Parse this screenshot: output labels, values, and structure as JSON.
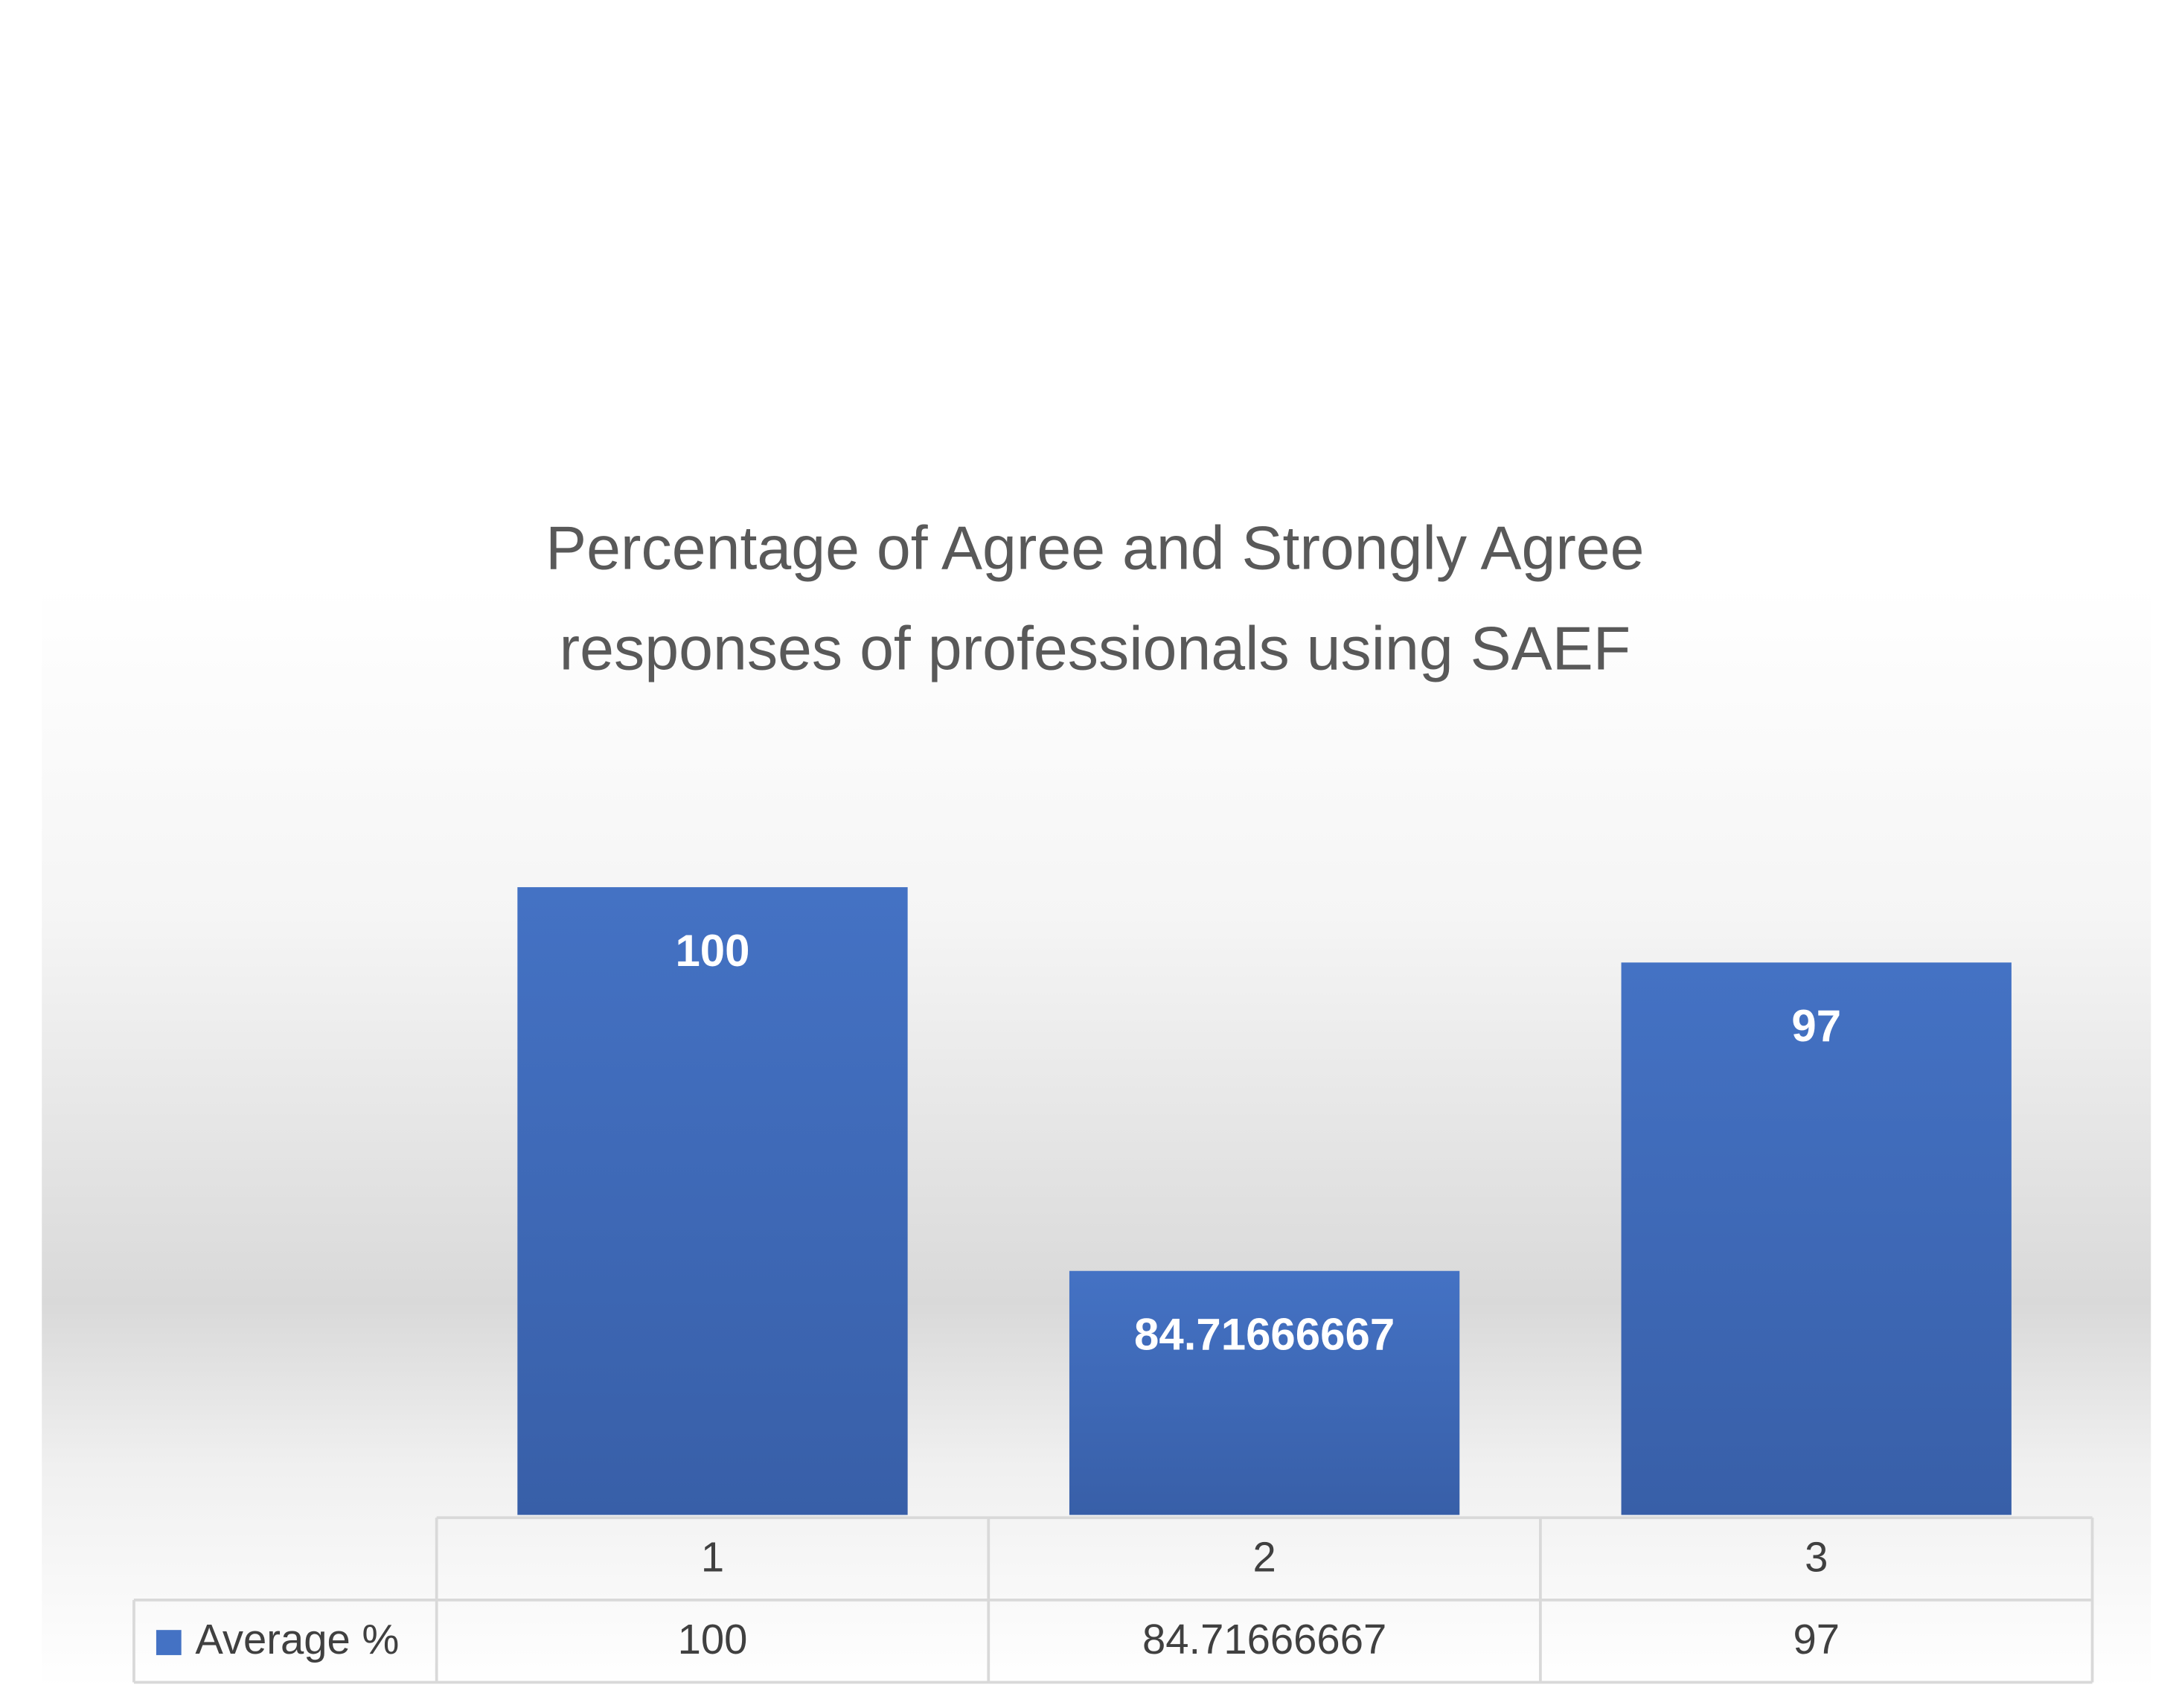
{
  "chart_data": {
    "type": "bar",
    "title": "Percentage of Agree and Strongly Agree responses of professionals using SAEF",
    "categories": [
      "1",
      "2",
      "3"
    ],
    "series": [
      {
        "name": "Average %",
        "color": "#4472c4",
        "values": [
          100,
          84.71666667,
          97
        ]
      }
    ],
    "ylim": [
      75,
      105
    ],
    "data_table": true
  }
}
